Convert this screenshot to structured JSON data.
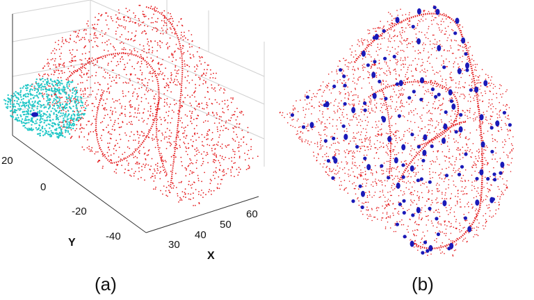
{
  "panels": [
    {
      "caption": "(a)",
      "description_points": {
        "surface_color": "#e41a1c",
        "patch_color": "#22c7c7",
        "seed_color": "#1a1ab8"
      },
      "y_axis": {
        "label": "Y",
        "ticks": [
          "20",
          "0",
          "-20",
          "-40"
        ]
      },
      "x_axis": {
        "label": "X",
        "ticks": [
          "30",
          "40",
          "50",
          "60"
        ]
      }
    },
    {
      "caption": "(b)",
      "description_points": {
        "surface_color": "#e41a1c",
        "feature_color": "#1a1ab8"
      }
    }
  ]
}
